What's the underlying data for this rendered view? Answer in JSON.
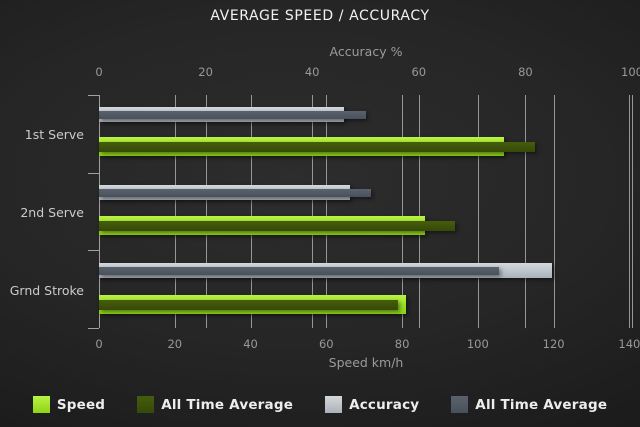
{
  "chart_data": {
    "type": "bar",
    "orientation": "horizontal",
    "title": "AVERAGE SPEED / ACCURACY",
    "categories": [
      "1st Serve",
      "2nd Serve",
      "Grnd Stroke"
    ],
    "top_axis": {
      "label": "Accuracy %",
      "min": 0,
      "max": 100,
      "ticks": [
        0,
        20,
        40,
        60,
        80,
        100
      ]
    },
    "bottom_axis": {
      "label": "Speed km/h",
      "min": 0,
      "max": 140,
      "ticks": [
        0,
        20,
        40,
        60,
        80,
        100,
        120,
        140
      ]
    },
    "grid": true,
    "legend_position": "bottom",
    "series": [
      {
        "name": "Speed",
        "axis": "bottom",
        "role": "main",
        "color": "#9ade22",
        "values": [
          107,
          86,
          81
        ]
      },
      {
        "name": "All Time Average",
        "axis": "bottom",
        "role": "overlay",
        "color": "#3d5306",
        "values": [
          115,
          94,
          79
        ]
      },
      {
        "name": "Accuracy",
        "axis": "top",
        "role": "main",
        "color": "#c3c9cf",
        "values": [
          46,
          47,
          85
        ]
      },
      {
        "name": "All Time Average",
        "axis": "top",
        "role": "overlay",
        "color": "#4d5560",
        "values": [
          50,
          51,
          75
        ]
      }
    ]
  },
  "colors": {
    "background_center": "#2d2d2d",
    "background_edge": "#131313",
    "gridline": "#979797",
    "title_text": "#f2f2f2",
    "axis_text": "#999999",
    "category_text": "#cbcbcb",
    "legend_text": "#ededed"
  }
}
